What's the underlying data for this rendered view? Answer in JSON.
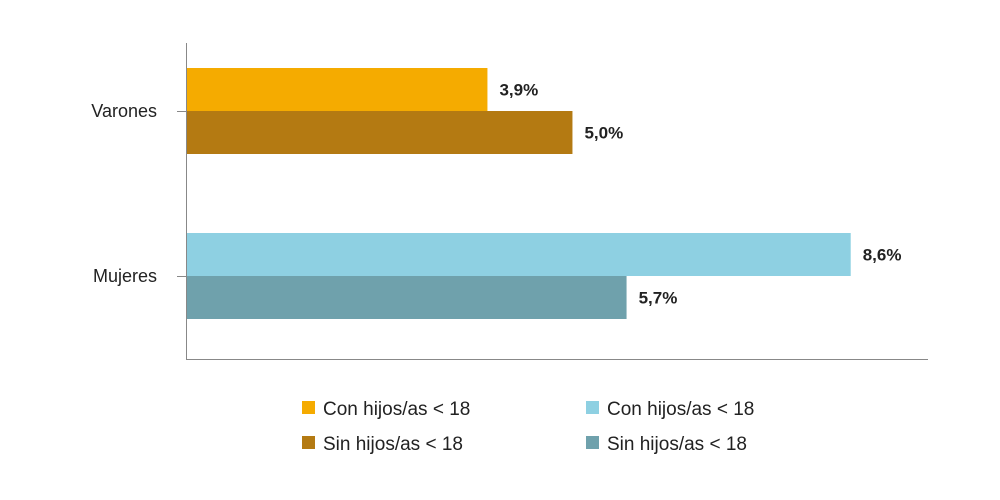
{
  "chart_data": {
    "type": "bar",
    "orientation": "horizontal",
    "categories": [
      "Varones",
      "Mujeres"
    ],
    "groups": [
      {
        "category": "Varones",
        "bars": [
          {
            "series": "Con hijos/as < 18",
            "value": 3.9,
            "label": "3,9%",
            "color": "#F5AB00"
          },
          {
            "series": "Sin hijos/as < 18",
            "value": 5.0,
            "label": "5,0%",
            "color": "#B47A12"
          }
        ]
      },
      {
        "category": "Mujeres",
        "bars": [
          {
            "series": "Con hijos/as < 18",
            "value": 8.6,
            "label": "8,6%",
            "color": "#8ED0E2"
          },
          {
            "series": "Sin hijos/as < 18",
            "value": 5.7,
            "label": "5,7%",
            "color": "#6FA1AC"
          }
        ]
      }
    ],
    "xlim": [
      0,
      9.6
    ],
    "grid": false,
    "legend": {
      "placement": "bottom",
      "entries": [
        {
          "label": "Con hijos/as < 18",
          "color": "#F5AB00"
        },
        {
          "label": "Con hijos/as < 18",
          "color": "#8ED0E2"
        },
        {
          "label": "Sin hijos/as < 18",
          "color": "#B47A12"
        },
        {
          "label": "Sin hijos/as < 18",
          "color": "#6FA1AC"
        }
      ]
    },
    "colors": {
      "axis": "#888888",
      "text": "#222222"
    }
  }
}
